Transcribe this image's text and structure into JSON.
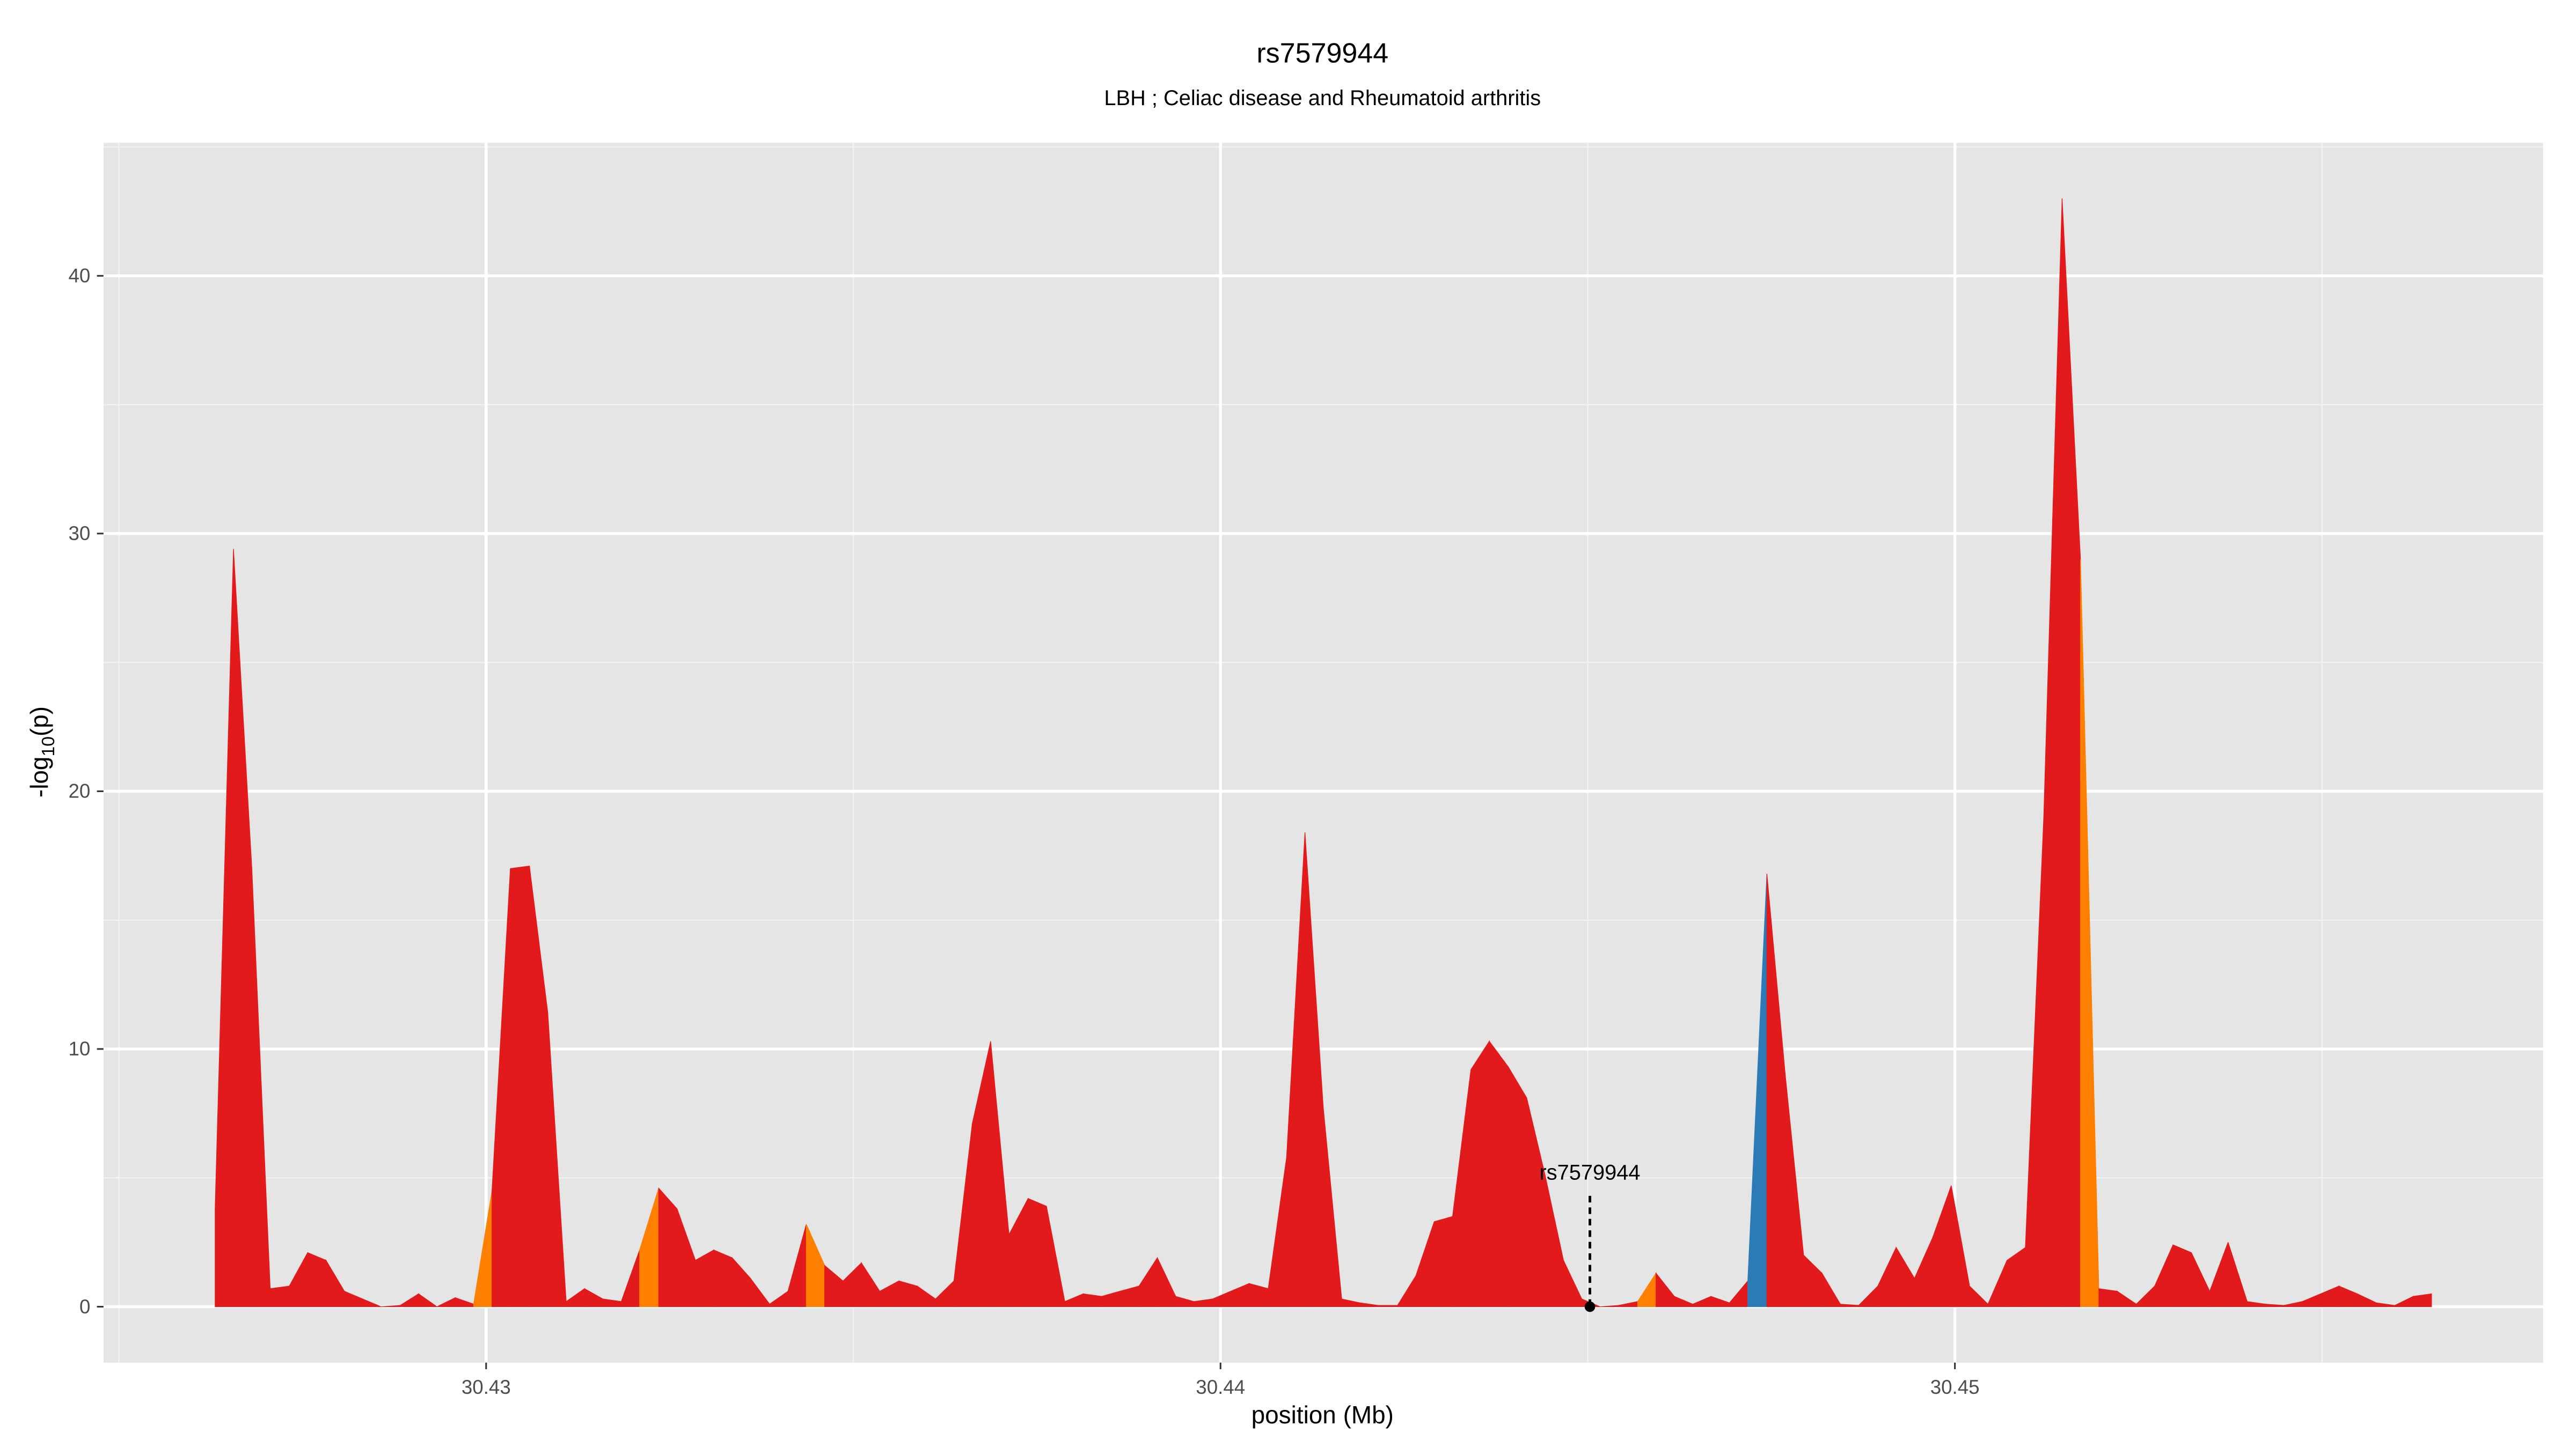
{
  "chart_data": {
    "type": "area",
    "title": "rs7579944",
    "subtitle": "LBH ; Celiac disease and Rheumatoid arthritis",
    "xlabel": "position (Mb)",
    "ylabel": {
      "main": "-log",
      "sub": "10",
      "end": "(p)"
    },
    "xlim": [
      30.42479,
      30.45801
    ],
    "ylim": [
      -2.17,
      45.16
    ],
    "xticks": [
      30.43,
      30.44,
      30.45
    ],
    "yticks": [
      0,
      10,
      20,
      30,
      40
    ],
    "x_minor_grid": [
      30.425,
      30.435,
      30.445,
      30.455
    ],
    "y_minor_grid": [
      5,
      15,
      25,
      35,
      45
    ],
    "grid": true,
    "background": "#e5e5e5",
    "x": [
      30.42631,
      30.42656,
      30.42681,
      30.42706,
      30.42732,
      30.42757,
      30.42782,
      30.42807,
      30.42832,
      30.42857,
      30.42883,
      30.42908,
      30.42933,
      30.42958,
      30.42983,
      30.43008,
      30.43033,
      30.43059,
      30.43084,
      30.43109,
      30.43134,
      30.43159,
      30.43184,
      30.43209,
      30.43235,
      30.4326,
      30.43285,
      30.4331,
      30.43335,
      30.4336,
      30.43386,
      30.43411,
      30.43436,
      30.43461,
      30.43486,
      30.43511,
      30.43536,
      30.43562,
      30.43587,
      30.43612,
      30.43637,
      30.43662,
      30.43687,
      30.43712,
      30.43738,
      30.43763,
      30.43788,
      30.43813,
      30.43838,
      30.43863,
      30.43889,
      30.43914,
      30.43939,
      30.43964,
      30.43989,
      30.44014,
      30.44039,
      30.44065,
      30.4409,
      30.44115,
      30.4414,
      30.44165,
      30.4419,
      30.44215,
      30.44241,
      30.44266,
      30.44291,
      30.44316,
      30.44341,
      30.44366,
      30.44392,
      30.44417,
      30.44442,
      30.44467,
      30.44492,
      30.44517,
      30.44542,
      30.44568,
      30.44593,
      30.44618,
      30.44643,
      30.44668,
      30.44693,
      30.44718,
      30.44744,
      30.44769,
      30.44794,
      30.44819,
      30.44844,
      30.44869,
      30.44895,
      30.4492,
      30.44945,
      30.4497,
      30.44995,
      30.4502,
      30.45045,
      30.45071,
      30.45096,
      30.45121,
      30.45146,
      30.45171,
      30.45196,
      30.45221,
      30.45247,
      30.45272,
      30.45297,
      30.45322,
      30.45347,
      30.45372,
      30.45398,
      30.45423,
      30.45448,
      30.45473,
      30.45498,
      30.45523,
      30.45548,
      30.45574,
      30.45599,
      30.45624,
      30.45649
    ],
    "values": [
      3.8,
      29.4,
      17,
      0.7,
      0.8,
      2.1,
      1.8,
      0.6,
      0.3,
      0,
      0.05,
      0.5,
      0,
      0.35,
      0.1,
      4.5,
      17.0,
      17.1,
      11.4,
      0.2,
      0.7,
      0.3,
      0.2,
      2.2,
      4.6,
      3.8,
      1.8,
      2.2,
      1.9,
      1.1,
      0.1,
      0.6,
      3.2,
      1.6,
      1.0,
      1.7,
      0.6,
      1.0,
      0.8,
      0.3,
      1.0,
      7.1,
      10.3,
      2.8,
      4.2,
      3.9,
      0.2,
      0.5,
      0.4,
      0.6,
      0.8,
      1.9,
      0.4,
      0.2,
      0.3,
      0.6,
      0.9,
      0.7,
      5.8,
      18.4,
      7.7,
      0.3,
      0.15,
      0.05,
      0.05,
      1.2,
      3.3,
      3.5,
      9.2,
      10.3,
      9.3,
      8.1,
      5.1,
      1.8,
      0.3,
      0,
      0.05,
      0.2,
      1.3,
      0.4,
      0.1,
      0.4,
      0.15,
      1.0,
      16.8,
      9.0,
      2.0,
      1.3,
      0.1,
      0.05,
      0.8,
      2.3,
      1.1,
      2.7,
      4.7,
      0.8,
      0.1,
      1.8,
      2.3,
      19,
      43,
      29,
      0.7,
      0.6,
      0.1,
      0.8,
      2.4,
      2.1,
      0.6,
      2.5,
      0.2,
      0.1,
      0.05,
      0.2,
      0.5,
      0.8,
      0.5,
      0.15,
      0.05,
      0.4,
      0.5
    ],
    "colors": [
      "#e31a1c",
      "#e31a1c",
      "#e31a1c",
      "#e31a1c",
      "#e31a1c",
      "#e31a1c",
      "#e31a1c",
      "#e31a1c",
      "#e31a1c",
      "#e31a1c",
      "#e31a1c",
      "#e31a1c",
      "#e31a1c",
      "#e31a1c",
      "#ff7f00",
      "#e31a1c",
      "#e31a1c",
      "#e31a1c",
      "#e31a1c",
      "#e31a1c",
      "#e31a1c",
      "#e31a1c",
      "#e31a1c",
      "#ff7f00",
      "#e31a1c",
      "#e31a1c",
      "#e31a1c",
      "#e31a1c",
      "#e31a1c",
      "#e31a1c",
      "#e31a1c",
      "#e31a1c",
      "#ff7f00",
      "#e31a1c",
      "#e31a1c",
      "#e31a1c",
      "#e31a1c",
      "#e31a1c",
      "#e31a1c",
      "#e31a1c",
      "#e31a1c",
      "#e31a1c",
      "#e31a1c",
      "#e31a1c",
      "#e31a1c",
      "#e31a1c",
      "#e31a1c",
      "#e31a1c",
      "#e31a1c",
      "#e31a1c",
      "#e31a1c",
      "#e31a1c",
      "#e31a1c",
      "#e31a1c",
      "#e31a1c",
      "#e31a1c",
      "#e31a1c",
      "#e31a1c",
      "#e31a1c",
      "#e31a1c",
      "#e31a1c",
      "#e31a1c",
      "#e31a1c",
      "#e31a1c",
      "#e31a1c",
      "#e31a1c",
      "#e31a1c",
      "#e31a1c",
      "#e31a1c",
      "#e31a1c",
      "#e31a1c",
      "#e31a1c",
      "#e31a1c",
      "#e31a1c",
      "#e31a1c",
      "#e31a1c",
      "#e31a1c",
      "#ff7f00",
      "#e31a1c",
      "#e31a1c",
      "#e31a1c",
      "#e31a1c",
      "#e31a1c",
      "#2c7bb6",
      "#e31a1c",
      "#e31a1c",
      "#e31a1c",
      "#e31a1c",
      "#e31a1c",
      "#e31a1c",
      "#e31a1c",
      "#e31a1c",
      "#e31a1c",
      "#e31a1c",
      "#e31a1c",
      "#e31a1c",
      "#e31a1c",
      "#e31a1c",
      "#e31a1c",
      "#e31a1c",
      "#e31a1c",
      "#ff7f00",
      "#e31a1c",
      "#e31a1c",
      "#e31a1c",
      "#e31a1c",
      "#e31a1c",
      "#e31a1c",
      "#e31a1c",
      "#e31a1c",
      "#e31a1c",
      "#e31a1c",
      "#e31a1c",
      "#e31a1c",
      "#e31a1c",
      "#e31a1c",
      "#e31a1c",
      "#e31a1c",
      "#e31a1c",
      "#e31a1c",
      "#e31a1c"
    ],
    "annotation": {
      "text": "rs7579944",
      "x": 30.44503,
      "y": 0,
      "line_top": 4.3
    }
  }
}
